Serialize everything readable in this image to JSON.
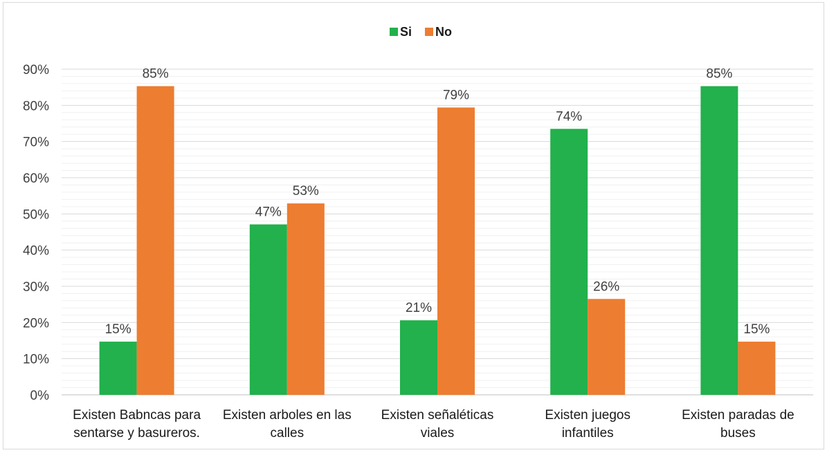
{
  "chart_data": {
    "type": "bar",
    "title": "",
    "xlabel": "",
    "ylabel": "",
    "ylim": [
      0,
      90
    ],
    "yticks": [
      0,
      10,
      20,
      30,
      40,
      50,
      60,
      70,
      80,
      90
    ],
    "ytick_labels": [
      "0%",
      "10%",
      "20%",
      "30%",
      "40%",
      "50%",
      "60%",
      "70%",
      "80%",
      "90%"
    ],
    "grid": true,
    "minor_grid_step": 2,
    "legend_position": "top-center",
    "categories": [
      [
        "Existen Babncas para",
        "sentarse y basureros."
      ],
      [
        "Existen arboles en las",
        "calles"
      ],
      [
        "Existen señaléticas",
        "viales"
      ],
      [
        "Existen juegos",
        "infantiles"
      ],
      [
        "Existen paradas de",
        "buses"
      ]
    ],
    "series": [
      {
        "name": "Si",
        "color": "#22b14c",
        "values": [
          14.7,
          47.1,
          20.6,
          73.5,
          85.3
        ],
        "labels": [
          "15%",
          "47%",
          "21%",
          "74%",
          "85%"
        ]
      },
      {
        "name": "No",
        "color": "#ed7d31",
        "values": [
          85.3,
          52.9,
          79.4,
          26.5,
          14.7
        ],
        "labels": [
          "85%",
          "53%",
          "79%",
          "26%",
          "15%"
        ]
      }
    ]
  }
}
